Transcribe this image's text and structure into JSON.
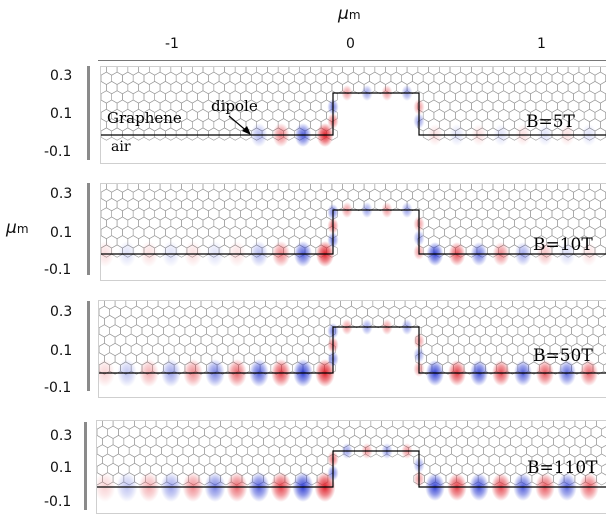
{
  "top_axis": {
    "title": "μ",
    "title_sub": "m",
    "ticks": [
      "-1",
      "0",
      "1"
    ]
  },
  "left_axis": {
    "title": "μ",
    "title_sub": "m",
    "ticks": [
      "0.3",
      "0.1",
      "-0.1"
    ]
  },
  "labels": {
    "graphene": "Graphene",
    "air": "air",
    "dipole": "dipole"
  },
  "colors": {
    "positive": "#e0202a",
    "negative": "#2030d0",
    "lattice": "#9a9a9a",
    "interface": "#000000"
  },
  "panels": [
    {
      "field": "B=5T"
    },
    {
      "field": "B=10T"
    },
    {
      "field": "B=50T"
    },
    {
      "field": "B=110T"
    }
  ]
}
